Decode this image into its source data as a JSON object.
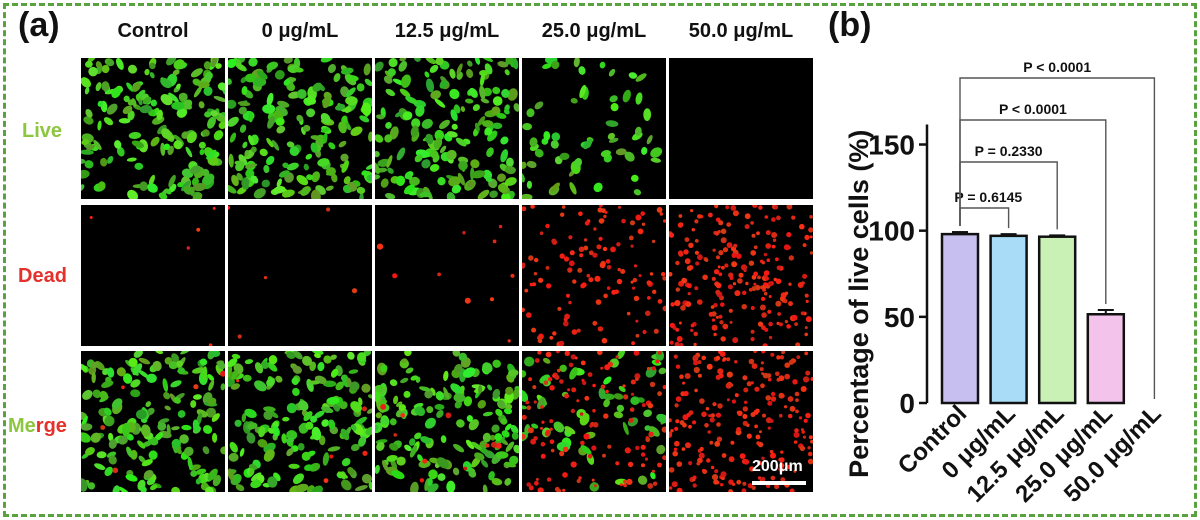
{
  "panel_a": {
    "label": "(a)",
    "columns": [
      "Control",
      "0 μg/mL",
      "12.5 μg/mL",
      "25.0 μg/mL",
      "50.0 μg/mL"
    ],
    "rows": [
      {
        "label": "Live",
        "color": "#8dc63f"
      },
      {
        "label": "Dead",
        "color": "#e5312b"
      },
      {
        "label_parts": [
          "Merge"
        ]
      }
    ],
    "merge_label": {
      "first": "Me",
      "second": "rge",
      "first_color": "#8dc63f",
      "second_color": "#e5312b"
    },
    "live_density": [
      1.0,
      1.0,
      0.95,
      0.35,
      0.0
    ],
    "dead_density": [
      0.01,
      0.01,
      0.03,
      0.55,
      1.0
    ],
    "scale_bar": "200μm"
  },
  "panel_b": {
    "label": "(b)"
  },
  "chart_data": {
    "type": "bar",
    "categories": [
      "Control",
      "0 μg/mL",
      "12.5 μg/mL",
      "25.0 μg/mL",
      "50.0 μg/mL"
    ],
    "values": [
      98,
      97,
      96.5,
      51.5,
      0
    ],
    "errors": [
      1.2,
      1.0,
      0.8,
      2.5,
      0
    ],
    "bar_colors": [
      "#c7bff0",
      "#a8dcf7",
      "#c9f0b5",
      "#f3c3ec",
      "#ffffff"
    ],
    "ylabel": "Percentage of  live cells  (%)",
    "ylim": [
      0,
      150
    ],
    "yticks": [
      0,
      50,
      100,
      150
    ],
    "significance": [
      {
        "from": 0,
        "to": 1,
        "label": "P = 0.6145"
      },
      {
        "from": 0,
        "to": 2,
        "label": "P = 0.2330"
      },
      {
        "from": 0,
        "to": 3,
        "label": "P < 0.0001"
      },
      {
        "from": 0,
        "to": 4,
        "label": "P < 0.0001"
      }
    ]
  }
}
